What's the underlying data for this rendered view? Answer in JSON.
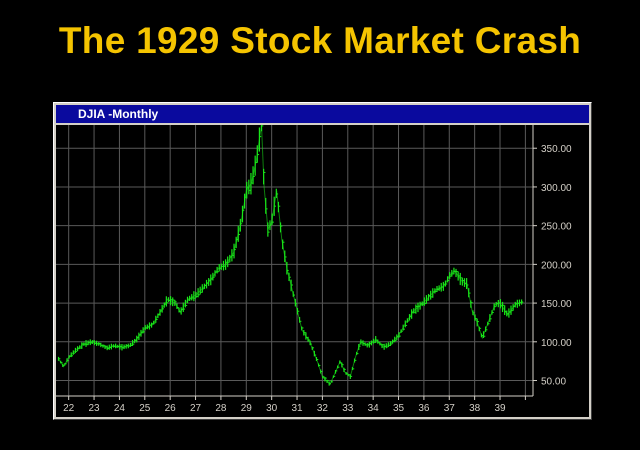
{
  "slide": {
    "title": "The 1929 Stock Market Crash"
  },
  "window": {
    "title": "DJIA -Monthly"
  },
  "colors": {
    "title": "#f5c400",
    "series": "#19e619",
    "grid": "#5a5a5a",
    "titlebar": "#0a0a9e"
  },
  "chart_data": {
    "type": "line",
    "style": "ohlc-bars",
    "title": "DJIA -Monthly",
    "xlabel": "",
    "ylabel": "",
    "xlim": [
      1921.5,
      1940.3
    ],
    "ylim": [
      30,
      380
    ],
    "x_ticks": [
      1922,
      1923,
      1924,
      1925,
      1926,
      1927,
      1928,
      1929,
      1930,
      1931,
      1932,
      1933,
      1934,
      1935,
      1936,
      1937,
      1938,
      1939,
      1940
    ],
    "x_tick_labels": [
      "22",
      "23",
      "24",
      "25",
      "26",
      "27",
      "28",
      "29",
      "30",
      "31",
      "32",
      "33",
      "34",
      "35",
      "36",
      "37",
      "38",
      "39",
      ""
    ],
    "y_ticks": [
      50,
      100,
      150,
      200,
      250,
      300,
      350
    ],
    "y_tick_labels": [
      "50.00",
      "100.00",
      "150.00",
      "200.00",
      "250.00",
      "300.00",
      "350.00"
    ],
    "grid": true,
    "series": [
      {
        "name": "",
        "x": [
          1921.6,
          1921.8,
          1922.0,
          1922.3,
          1922.6,
          1922.9,
          1923.2,
          1923.5,
          1923.8,
          1924.1,
          1924.4,
          1924.7,
          1925.0,
          1925.3,
          1925.6,
          1925.9,
          1926.2,
          1926.4,
          1926.7,
          1927.0,
          1927.3,
          1927.6,
          1927.9,
          1928.2,
          1928.5,
          1928.8,
          1929.0,
          1929.2,
          1929.4,
          1929.6,
          1929.7,
          1929.85,
          1930.0,
          1930.2,
          1930.4,
          1930.6,
          1930.9,
          1931.2,
          1931.5,
          1931.8,
          1932.0,
          1932.3,
          1932.5,
          1932.7,
          1932.9,
          1933.1,
          1933.3,
          1933.5,
          1933.8,
          1934.1,
          1934.4,
          1934.7,
          1935.0,
          1935.3,
          1935.6,
          1935.9,
          1936.2,
          1936.5,
          1936.8,
          1937.0,
          1937.2,
          1937.5,
          1937.7,
          1937.9,
          1938.1,
          1938.3,
          1938.5,
          1938.8,
          1939.0,
          1939.3,
          1939.6,
          1939.9
        ],
        "y": [
          78,
          68,
          80,
          90,
          97,
          100,
          97,
          92,
          95,
          93,
          95,
          104,
          118,
          122,
          138,
          155,
          150,
          138,
          155,
          160,
          170,
          180,
          195,
          200,
          215,
          255,
          295,
          305,
          335,
          380,
          300,
          245,
          255,
          295,
          232,
          195,
          155,
          115,
          100,
          75,
          55,
          45,
          60,
          75,
          60,
          55,
          80,
          100,
          95,
          103,
          93,
          98,
          108,
          125,
          140,
          148,
          158,
          168,
          172,
          185,
          192,
          178,
          175,
          140,
          125,
          105,
          122,
          148,
          150,
          135,
          148,
          152
        ]
      }
    ]
  }
}
